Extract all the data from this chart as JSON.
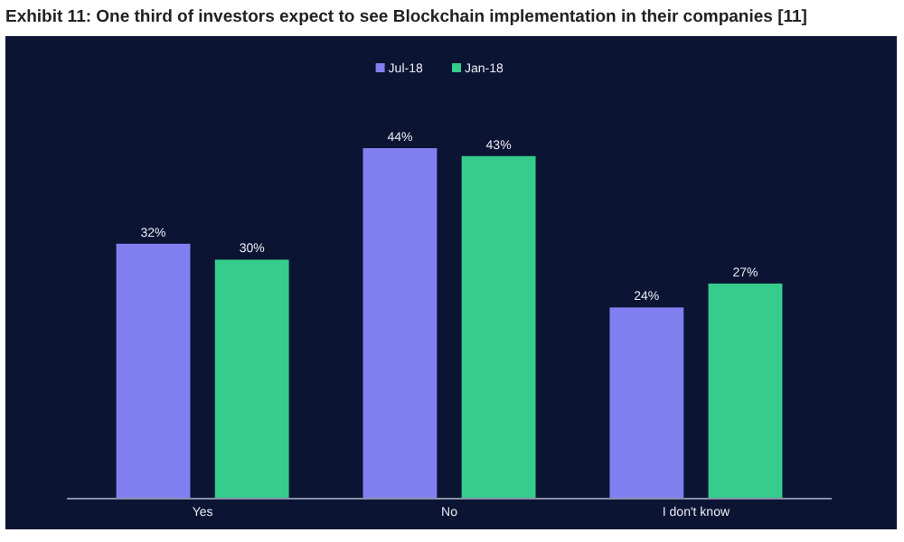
{
  "chart_data": {
    "type": "bar",
    "title": "Exhibit 11: One third of investors expect to see Blockchain implementation in their companies [11]",
    "categories": [
      "Yes",
      "No",
      "I don't know"
    ],
    "series": [
      {
        "name": "Jul-18",
        "color": "#8080f0",
        "values": [
          32,
          44,
          24
        ],
        "value_labels": [
          "32%",
          "44%",
          "24%"
        ]
      },
      {
        "name": "Jan-18",
        "color": "#35cc8c",
        "values": [
          30,
          43,
          27
        ],
        "value_labels": [
          "30%",
          "43%",
          "27%"
        ]
      }
    ],
    "legend": "top"
  }
}
